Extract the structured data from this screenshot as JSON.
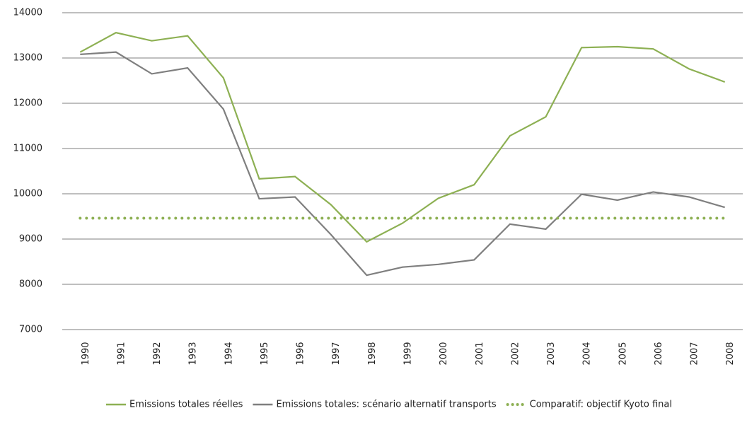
{
  "chart_data": {
    "type": "line",
    "categories": [
      "1990",
      "1991",
      "1992",
      "1993",
      "1994",
      "1995",
      "1996",
      "1997",
      "1998",
      "1999",
      "2000",
      "2001",
      "2002",
      "2003",
      "2004",
      "2005",
      "2006",
      "2007",
      "2008"
    ],
    "series": [
      {
        "name": "Emissions totales réelles",
        "color": "#8db053",
        "style": "solid",
        "values": [
          13130,
          13560,
          13380,
          13490,
          12560,
          10330,
          10380,
          9760,
          8940,
          9350,
          9900,
          10200,
          11280,
          11700,
          13230,
          13250,
          13200,
          12760,
          12470
        ]
      },
      {
        "name": "Emissions totales: scénario alternatif transports",
        "color": "#7f7f7f",
        "style": "solid",
        "values": [
          13080,
          13130,
          12650,
          12780,
          11870,
          9890,
          9930,
          9100,
          8200,
          8380,
          8440,
          8540,
          9330,
          9220,
          9990,
          9860,
          10040,
          9930,
          9700
        ]
      },
      {
        "name": "Comparatif: objectif Kyoto final",
        "color": "#8db053",
        "style": "dotted",
        "values": [
          9460,
          9460,
          9460,
          9460,
          9460,
          9460,
          9460,
          9460,
          9460,
          9460,
          9460,
          9460,
          9460,
          9460,
          9460,
          9460,
          9460,
          9460,
          9460
        ]
      }
    ],
    "ylim": [
      7000,
      14000
    ],
    "yticks": [
      7000,
      8000,
      9000,
      10000,
      11000,
      12000,
      13000,
      14000
    ],
    "grid": true,
    "legend": "bottom"
  }
}
